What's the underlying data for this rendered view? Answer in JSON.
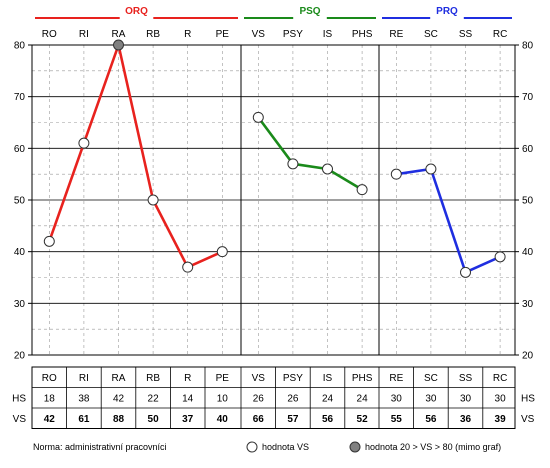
{
  "chart_data": {
    "type": "line",
    "ylim": [
      20,
      80
    ],
    "yticks": [
      20,
      30,
      40,
      50,
      60,
      70,
      80
    ],
    "grid": true,
    "groups": [
      {
        "name": "ORQ",
        "color": "#e8221e",
        "categories": [
          "RO",
          "RI",
          "RA",
          "RB",
          "R",
          "PE"
        ],
        "hs": [
          "18",
          "38",
          "42",
          "22",
          "14",
          "10"
        ],
        "vs": [
          42,
          61,
          88,
          50,
          37,
          40
        ]
      },
      {
        "name": "PSQ",
        "color": "#1a8a1a",
        "categories": [
          "VS",
          "PSY",
          "IS",
          "PHS"
        ],
        "hs": [
          "26",
          "26",
          "24",
          "24"
        ],
        "vs": [
          66,
          57,
          56,
          52
        ]
      },
      {
        "name": "PRQ",
        "color": "#1f2ee0",
        "categories": [
          "RE",
          "SC",
          "SS",
          "RC"
        ],
        "hs": [
          "30",
          "30",
          "30",
          "30"
        ],
        "vs": [
          55,
          56,
          36,
          39
        ]
      }
    ],
    "row_labels": {
      "hs": "HS",
      "vs": "VS"
    }
  },
  "legend": {
    "norm": "Norma: administrativní pracovníci",
    "open_marker": "hodnota VS",
    "filled_marker": "hodnota 20 > VS > 80 (mimo graf)"
  }
}
